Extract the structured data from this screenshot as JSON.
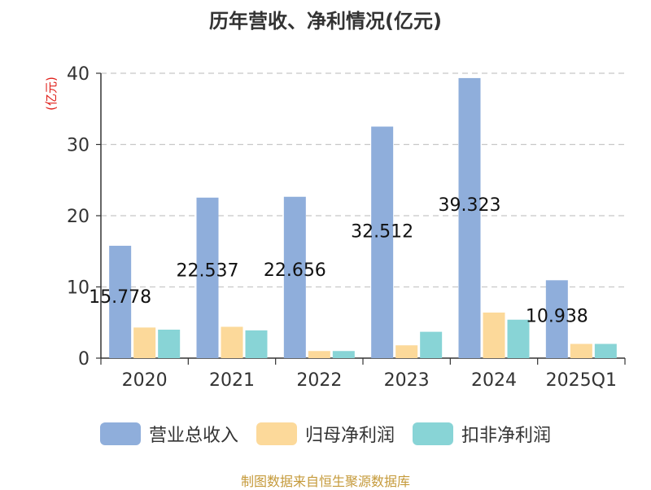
{
  "chart_data": {
    "type": "bar",
    "title": "历年营收、净利情况(亿元)",
    "ylabel": "(亿元)",
    "xlabel": "",
    "categories": [
      "2020",
      "2021",
      "2022",
      "2023",
      "2024",
      "2025Q1"
    ],
    "ylim": [
      0,
      40
    ],
    "yticks": [
      0,
      10,
      20,
      30,
      40
    ],
    "grid": true,
    "legend_position": "bottom",
    "series": [
      {
        "name": "营业总收入",
        "color": "#8faedb",
        "values": [
          15.778,
          22.537,
          22.656,
          32.512,
          39.323,
          10.938
        ],
        "data_labels": [
          "15.778",
          "22.537",
          "22.656",
          "32.512",
          "39.323",
          "10.938"
        ]
      },
      {
        "name": "归母净利润",
        "color": "#fcd99a",
        "values": [
          4.3,
          4.4,
          1.0,
          1.8,
          6.4,
          2.0
        ]
      },
      {
        "name": "扣非净利润",
        "color": "#88d4d6",
        "values": [
          4.0,
          3.9,
          1.0,
          3.7,
          5.4,
          2.0
        ]
      }
    ]
  },
  "footer": {
    "source": "制图数据来自恒生聚源数据库"
  }
}
